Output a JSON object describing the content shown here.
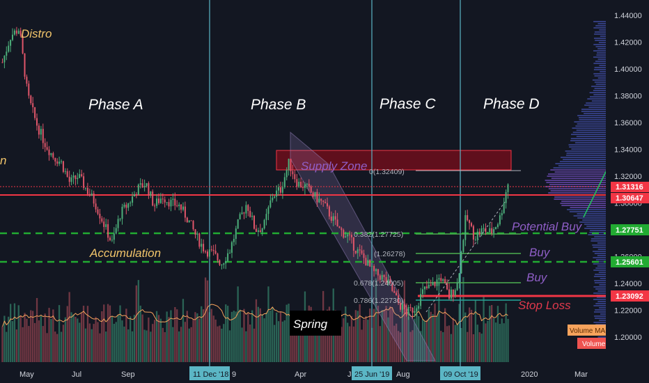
{
  "chart_data": {
    "type": "candlestick",
    "title": "",
    "xlabel": "",
    "ylabel": "",
    "ylim": [
      1.18,
      1.45
    ],
    "y_ticks": [
      "1.44000",
      "1.42000",
      "1.40000",
      "1.38000",
      "1.36000",
      "1.34000",
      "1.32000",
      "1.30000",
      "1.28000",
      "1.26000",
      "1.24000",
      "1.22000",
      "1.20000"
    ],
    "x_ticks": [
      "May",
      "Jul",
      "Sep",
      "11 Dec '18",
      "9",
      "Apr",
      "J",
      "25 Jun '19",
      "Aug",
      "09 Oct '19",
      "2020",
      "Mar"
    ],
    "price_path": [
      [
        0,
        1.405
      ],
      [
        1,
        1.425
      ],
      [
        2,
        1.43
      ],
      [
        3,
        1.38
      ],
      [
        4,
        1.36
      ],
      [
        5,
        1.345
      ],
      [
        6,
        1.335
      ],
      [
        7,
        1.33
      ],
      [
        8,
        1.315
      ],
      [
        9,
        1.32
      ],
      [
        10,
        1.31
      ],
      [
        11,
        1.3
      ],
      [
        12,
        1.285
      ],
      [
        13,
        1.27
      ],
      [
        14,
        1.292
      ],
      [
        15,
        1.3
      ],
      [
        16,
        1.31
      ],
      [
        17,
        1.315
      ],
      [
        18,
        1.298
      ],
      [
        19,
        1.305
      ],
      [
        20,
        1.3
      ],
      [
        21,
        1.298
      ],
      [
        22,
        1.288
      ],
      [
        23,
        1.275
      ],
      [
        24,
        1.265
      ],
      [
        25,
        1.262
      ],
      [
        26,
        1.255
      ],
      [
        27,
        1.265
      ],
      [
        28,
        1.285
      ],
      [
        29,
        1.3
      ],
      [
        30,
        1.28
      ],
      [
        31,
        1.282
      ],
      [
        32,
        1.305
      ],
      [
        33,
        1.31
      ],
      [
        34,
        1.33
      ],
      [
        35,
        1.315
      ],
      [
        36,
        1.312
      ],
      [
        37,
        1.305
      ],
      [
        38,
        1.3
      ],
      [
        39,
        1.29
      ],
      [
        40,
        1.28
      ],
      [
        41,
        1.275
      ],
      [
        42,
        1.265
      ],
      [
        43,
        1.258
      ],
      [
        44,
        1.248
      ],
      [
        45,
        1.245
      ],
      [
        46,
        1.238
      ],
      [
        47,
        1.225
      ],
      [
        48,
        1.218
      ],
      [
        49,
        1.222
      ],
      [
        50,
        1.235
      ],
      [
        51,
        1.238
      ],
      [
        52,
        1.245
      ],
      [
        53,
        1.23
      ],
      [
        54,
        1.24
      ],
      [
        55,
        1.29
      ],
      [
        56,
        1.275
      ],
      [
        57,
        1.28
      ],
      [
        58,
        1.278
      ],
      [
        59,
        1.288
      ],
      [
        60,
        1.315
      ]
    ],
    "levels": [
      {
        "value": "1.31316",
        "color": "#f23645"
      },
      {
        "value": "1.30647",
        "color": "#f23645"
      },
      {
        "value": "1.27751",
        "color": "#22ab32"
      },
      {
        "value": "1.25601",
        "color": "#22ab32"
      },
      {
        "value": "1.23092",
        "color": "#f23645"
      }
    ],
    "fib_levels": [
      {
        "label": "0(1.32409)",
        "value": 1.32409
      },
      {
        "label": "0.382(1.27725)",
        "value": 1.27725
      },
      {
        "label": "(1.26278)",
        "value": 1.26278
      },
      {
        "label": "0.678(1.24005)",
        "value": 1.24005
      },
      {
        "label": "0.786(1.22730)",
        "value": 1.2273
      }
    ],
    "phases": [
      "Phase A",
      "Phase B",
      "Phase C",
      "Phase D"
    ],
    "annotations": {
      "distro": "Distro",
      "left_cut": "n",
      "accumulation": "Accumulation",
      "spring": "Spring",
      "supply_zone": "Supply Zone",
      "potential_buy": "Potential Buy",
      "buy1": "Buy",
      "buy2": "Buy",
      "stop_loss": "Stop Loss"
    },
    "legend": [
      "Volume MA",
      "Volume"
    ],
    "grid": false
  },
  "colors": {
    "background": "#131722",
    "up": "#4caf7a",
    "down": "#e0566a",
    "phase_line": "#5bb6c5",
    "red_level": "#f23645",
    "green_level": "#22ab32",
    "supply": "#8b0a1a",
    "channel": "#7a6a9a",
    "annotation_yellow": "#f2c56b",
    "annotation_purple": "#8f5ec7",
    "stop_loss_red": "#e0394c"
  }
}
